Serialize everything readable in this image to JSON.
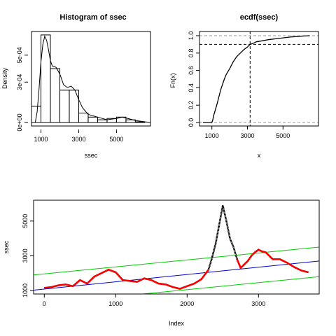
{
  "chart_data": [
    {
      "type": "histogram",
      "title": "Histogram of ssec",
      "xlabel": "ssec",
      "ylabel": "Density",
      "xticks": [
        "1000",
        "3000",
        "5000"
      ],
      "yticks": [
        "0e+00",
        "3e-04",
        "5e-04"
      ],
      "xlim": [
        500,
        6800
      ],
      "ylim": [
        0,
        0.00066
      ],
      "bins": [
        {
          "x0": 500,
          "x1": 1000,
          "density": 0.00012
        },
        {
          "x0": 1000,
          "x1": 1500,
          "density": 0.00065
        },
        {
          "x0": 1500,
          "x1": 2000,
          "density": 0.0004
        },
        {
          "x0": 2000,
          "x1": 2500,
          "density": 0.00024
        },
        {
          "x0": 2500,
          "x1": 3000,
          "density": 0.00024
        },
        {
          "x0": 3000,
          "x1": 3500,
          "density": 7e-05
        },
        {
          "x0": 3500,
          "x1": 4000,
          "density": 4e-05
        },
        {
          "x0": 4000,
          "x1": 4500,
          "density": 2e-05
        },
        {
          "x0": 4500,
          "x1": 5000,
          "density": 3e-05
        },
        {
          "x0": 5000,
          "x1": 5500,
          "density": 4e-05
        },
        {
          "x0": 5500,
          "x1": 6000,
          "density": 2e-05
        },
        {
          "x0": 6000,
          "x1": 6500,
          "density": 5e-06
        }
      ],
      "density_curve": {
        "x": [
          700,
          800,
          900,
          1000,
          1100,
          1200,
          1300,
          1400,
          1500,
          1600,
          1800,
          2000,
          2200,
          2400,
          2600,
          2800,
          3000,
          3200,
          3500,
          4000,
          4500,
          5000,
          5300,
          5600,
          6000,
          6500,
          6800
        ],
        "y": [
          0.0,
          8e-05,
          0.00025,
          0.00045,
          0.00058,
          0.00064,
          0.00061,
          0.00054,
          0.00046,
          0.00042,
          0.00041,
          0.00036,
          0.00028,
          0.00026,
          0.00027,
          0.00024,
          0.00017,
          0.00011,
          6e-05,
          4e-05,
          2e-05,
          3e-05,
          4e-05,
          3e-05,
          1.5e-05,
          5e-06,
          0.0
        ]
      }
    },
    {
      "type": "line",
      "title": "ecdf(ssec)",
      "xlabel": "x",
      "ylabel": "Fn(x)",
      "xticks": [
        "1000",
        "3000",
        "5000"
      ],
      "yticks": [
        "0.0",
        "0.2",
        "0.4",
        "0.6",
        "0.8",
        "1.0"
      ],
      "xlim": [
        500,
        6800
      ],
      "ylim": [
        0,
        1.0
      ],
      "x": [
        500,
        1000,
        1050,
        1100,
        1200,
        1300,
        1500,
        1700,
        1800,
        2000,
        2200,
        2400,
        2600,
        2800,
        3000,
        3150,
        3300,
        3500,
        3800,
        4200,
        4600,
        5000,
        5400,
        5800,
        6200,
        6500
      ],
      "y": [
        0.0,
        0.0,
        0.03,
        0.08,
        0.15,
        0.22,
        0.38,
        0.5,
        0.55,
        0.62,
        0.7,
        0.76,
        0.8,
        0.84,
        0.87,
        0.9,
        0.91,
        0.93,
        0.94,
        0.955,
        0.965,
        0.975,
        0.985,
        0.99,
        0.997,
        1.0
      ],
      "reference": {
        "vline_x": 3150,
        "hline_y": 0.9,
        "bounds": [
          0.0,
          1.0
        ]
      }
    },
    {
      "type": "line",
      "title": "",
      "xlabel": "Index",
      "ylabel": "ssec",
      "xticks": [
        "0",
        "1000",
        "2000",
        "3000"
      ],
      "yticks": [
        "1000",
        "3000",
        "5000"
      ],
      "xlim": [
        -150,
        3850
      ],
      "ylim": [
        800,
        6200
      ],
      "series": [
        {
          "color": "#000000",
          "x": [
            0,
            100,
            200,
            300,
            400,
            500,
            600,
            700,
            800,
            900,
            1000,
            1100,
            1200,
            1300,
            1400,
            1500,
            1600,
            1700,
            1800,
            1900,
            2000,
            2100,
            2200,
            2300,
            2350,
            2400,
            2450,
            2500,
            2550,
            2600,
            2650,
            2700,
            2750,
            2800,
            2850,
            2900,
            2950,
            3000,
            3050,
            3100,
            3150,
            3200,
            3300,
            3400,
            3500,
            3600,
            3700
          ],
          "y": [
            1150,
            1200,
            1300,
            1350,
            1250,
            1600,
            1400,
            1800,
            2000,
            2200,
            2050,
            1600,
            1550,
            1500,
            1700,
            1600,
            1400,
            1350,
            1200,
            1100,
            1250,
            1400,
            1650,
            2200,
            2900,
            3700,
            4800,
            5900,
            5000,
            4000,
            3500,
            2800,
            2300,
            2500,
            2700,
            3000,
            3200,
            3350,
            3250,
            3200,
            3000,
            2800,
            2800,
            2600,
            2350,
            2150,
            2050
          ]
        }
      ],
      "fit_lines": [
        {
          "color": "#0000cc",
          "x": [
            -150,
            3850
          ],
          "y": [
            1020,
            2700
          ]
        },
        {
          "color": "#00cc00",
          "x": [
            -150,
            3850
          ],
          "y": [
            1900,
            3500
          ]
        },
        {
          "color": "#00cc00",
          "x": [
            -150,
            3850
          ],
          "y": [
            180,
            1800
          ]
        }
      ],
      "highlight_color": "#ff0000",
      "highlight_ranges": [
        [
          0,
          2300
        ],
        [
          2700,
          3700
        ]
      ]
    }
  ]
}
